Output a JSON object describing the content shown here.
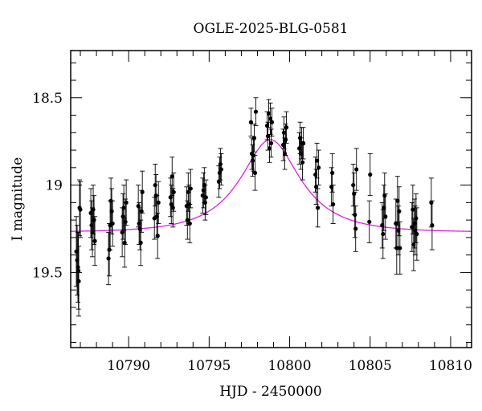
{
  "chart_data": {
    "type": "scatter",
    "title": "OGLE-2025-BLG-0581",
    "xlabel": "HJD - 2450000",
    "ylabel": "I magnitude",
    "xlim": [
      10786.4,
      10811.3
    ],
    "ylim": [
      19.93,
      18.23
    ],
    "y_inverted": true,
    "x_ticks": [
      10790,
      10795,
      10800,
      10805,
      10810
    ],
    "x_tick_labels": [
      "10790",
      "10795",
      "10800",
      "10805",
      "10810"
    ],
    "y_ticks": [
      18.5,
      19,
      19.5
    ],
    "y_tick_labels": [
      "18.5",
      "19",
      "19.5"
    ],
    "grid": false,
    "legend": "none",
    "colors": {
      "points": "#000000",
      "model": "#e020e0",
      "frame": "#000000"
    },
    "series": [
      {
        "kind": "points",
        "points": [
          {
            "x": 10786.75,
            "y": 19.38,
            "err": 0.2
          },
          {
            "x": 10786.8,
            "y": 19.43,
            "err": 0.2
          },
          {
            "x": 10786.85,
            "y": 19.47,
            "err": 0.2
          },
          {
            "x": 10786.88,
            "y": 19.49,
            "err": 0.22
          },
          {
            "x": 10786.9,
            "y": 19.55,
            "err": 0.2
          },
          {
            "x": 10786.95,
            "y": 19.13,
            "err": 0.16
          },
          {
            "x": 10787.0,
            "y": 19.14,
            "err": 0.16
          },
          {
            "x": 10787.65,
            "y": 19.16,
            "err": 0.14
          },
          {
            "x": 10787.7,
            "y": 19.23,
            "err": 0.14
          },
          {
            "x": 10787.75,
            "y": 19.27,
            "err": 0.14
          },
          {
            "x": 10787.8,
            "y": 19.14,
            "err": 0.14
          },
          {
            "x": 10787.85,
            "y": 19.2,
            "err": 0.14
          },
          {
            "x": 10787.9,
            "y": 19.32,
            "err": 0.14
          },
          {
            "x": 10788.75,
            "y": 19.42,
            "err": 0.15
          },
          {
            "x": 10788.8,
            "y": 19.37,
            "err": 0.15
          },
          {
            "x": 10788.85,
            "y": 19.23,
            "err": 0.14
          },
          {
            "x": 10788.9,
            "y": 19.09,
            "err": 0.13
          },
          {
            "x": 10788.95,
            "y": 19.15,
            "err": 0.13
          },
          {
            "x": 10789.0,
            "y": 19.22,
            "err": 0.13
          },
          {
            "x": 10789.6,
            "y": 19.27,
            "err": 0.14
          },
          {
            "x": 10789.65,
            "y": 19.18,
            "err": 0.13
          },
          {
            "x": 10789.7,
            "y": 19.13,
            "err": 0.13
          },
          {
            "x": 10789.75,
            "y": 19.33,
            "err": 0.14
          },
          {
            "x": 10789.8,
            "y": 19.21,
            "err": 0.13
          },
          {
            "x": 10789.85,
            "y": 19.1,
            "err": 0.13
          },
          {
            "x": 10790.6,
            "y": 19.12,
            "err": 0.12
          },
          {
            "x": 10790.65,
            "y": 19.22,
            "err": 0.12
          },
          {
            "x": 10790.7,
            "y": 19.25,
            "err": 0.12
          },
          {
            "x": 10790.75,
            "y": 19.33,
            "err": 0.13
          },
          {
            "x": 10790.8,
            "y": 19.15,
            "err": 0.12
          },
          {
            "x": 10790.85,
            "y": 19.04,
            "err": 0.12
          },
          {
            "x": 10791.6,
            "y": 19.19,
            "err": 0.12
          },
          {
            "x": 10791.65,
            "y": 19.0,
            "err": 0.12
          },
          {
            "x": 10791.7,
            "y": 19.06,
            "err": 0.12
          },
          {
            "x": 10791.75,
            "y": 19.18,
            "err": 0.12
          },
          {
            "x": 10791.8,
            "y": 19.29,
            "err": 0.13
          },
          {
            "x": 10791.85,
            "y": 19.1,
            "err": 0.12
          },
          {
            "x": 10792.6,
            "y": 19.07,
            "err": 0.11
          },
          {
            "x": 10792.65,
            "y": 19.11,
            "err": 0.11
          },
          {
            "x": 10792.7,
            "y": 18.95,
            "err": 0.11
          },
          {
            "x": 10792.75,
            "y": 19.13,
            "err": 0.11
          },
          {
            "x": 10792.8,
            "y": 19.04,
            "err": 0.11
          },
          {
            "x": 10793.6,
            "y": 19.12,
            "err": 0.11
          },
          {
            "x": 10793.65,
            "y": 19.2,
            "err": 0.11
          },
          {
            "x": 10793.7,
            "y": 19.04,
            "err": 0.11
          },
          {
            "x": 10793.75,
            "y": 19.11,
            "err": 0.11
          },
          {
            "x": 10793.8,
            "y": 19.22,
            "err": 0.11
          },
          {
            "x": 10793.85,
            "y": 19.02,
            "err": 0.11
          },
          {
            "x": 10794.6,
            "y": 19.06,
            "err": 0.1
          },
          {
            "x": 10794.65,
            "y": 19.03,
            "err": 0.1
          },
          {
            "x": 10794.7,
            "y": 19.0,
            "err": 0.1
          },
          {
            "x": 10794.75,
            "y": 19.1,
            "err": 0.1
          },
          {
            "x": 10794.8,
            "y": 19.07,
            "err": 0.1
          },
          {
            "x": 10795.6,
            "y": 18.98,
            "err": 0.09
          },
          {
            "x": 10795.65,
            "y": 18.93,
            "err": 0.09
          },
          {
            "x": 10795.7,
            "y": 18.88,
            "err": 0.09
          },
          {
            "x": 10795.75,
            "y": 18.91,
            "err": 0.09
          },
          {
            "x": 10797.6,
            "y": 18.64,
            "err": 0.08
          },
          {
            "x": 10797.65,
            "y": 18.82,
            "err": 0.09
          },
          {
            "x": 10797.7,
            "y": 18.86,
            "err": 0.09
          },
          {
            "x": 10797.75,
            "y": 18.83,
            "err": 0.09
          },
          {
            "x": 10797.8,
            "y": 18.73,
            "err": 0.08
          },
          {
            "x": 10797.85,
            "y": 18.93,
            "err": 0.1
          },
          {
            "x": 10797.9,
            "y": 18.58,
            "err": 0.08
          },
          {
            "x": 10798.6,
            "y": 18.66,
            "err": 0.08
          },
          {
            "x": 10798.65,
            "y": 18.72,
            "err": 0.08
          },
          {
            "x": 10798.7,
            "y": 18.59,
            "err": 0.08
          },
          {
            "x": 10798.75,
            "y": 18.79,
            "err": 0.08
          },
          {
            "x": 10798.8,
            "y": 18.62,
            "err": 0.09
          },
          {
            "x": 10798.85,
            "y": 18.76,
            "err": 0.08
          },
          {
            "x": 10798.9,
            "y": 18.64,
            "err": 0.08
          },
          {
            "x": 10799.6,
            "y": 18.77,
            "err": 0.09
          },
          {
            "x": 10799.65,
            "y": 18.7,
            "err": 0.09
          },
          {
            "x": 10799.7,
            "y": 18.82,
            "err": 0.09
          },
          {
            "x": 10799.75,
            "y": 18.74,
            "err": 0.09
          },
          {
            "x": 10799.8,
            "y": 18.67,
            "err": 0.09
          },
          {
            "x": 10800.6,
            "y": 18.79,
            "err": 0.09
          },
          {
            "x": 10800.65,
            "y": 18.73,
            "err": 0.09
          },
          {
            "x": 10800.7,
            "y": 18.82,
            "err": 0.09
          },
          {
            "x": 10800.75,
            "y": 18.76,
            "err": 0.09
          },
          {
            "x": 10800.8,
            "y": 18.87,
            "err": 0.1
          },
          {
            "x": 10800.85,
            "y": 18.76,
            "err": 0.09
          },
          {
            "x": 10801.6,
            "y": 18.94,
            "err": 0.1
          },
          {
            "x": 10801.65,
            "y": 19.01,
            "err": 0.1
          },
          {
            "x": 10801.7,
            "y": 18.86,
            "err": 0.1
          },
          {
            "x": 10801.75,
            "y": 19.13,
            "err": 0.11
          },
          {
            "x": 10801.8,
            "y": 18.9,
            "err": 0.1
          },
          {
            "x": 10802.6,
            "y": 19.01,
            "err": 0.11
          },
          {
            "x": 10802.65,
            "y": 18.93,
            "err": 0.11
          },
          {
            "x": 10802.7,
            "y": 19.11,
            "err": 0.11
          },
          {
            "x": 10803.95,
            "y": 19.0,
            "err": 0.12
          },
          {
            "x": 10804.0,
            "y": 19.05,
            "err": 0.12
          },
          {
            "x": 10804.05,
            "y": 19.17,
            "err": 0.13
          },
          {
            "x": 10804.1,
            "y": 19.25,
            "err": 0.13
          },
          {
            "x": 10804.15,
            "y": 18.91,
            "err": 0.12
          },
          {
            "x": 10804.95,
            "y": 19.21,
            "err": 0.12
          },
          {
            "x": 10805.0,
            "y": 18.94,
            "err": 0.12
          },
          {
            "x": 10805.75,
            "y": 19.23,
            "err": 0.13
          },
          {
            "x": 10805.8,
            "y": 19.28,
            "err": 0.14
          },
          {
            "x": 10805.85,
            "y": 19.13,
            "err": 0.13
          },
          {
            "x": 10805.9,
            "y": 19.06,
            "err": 0.13
          },
          {
            "x": 10805.95,
            "y": 19.18,
            "err": 0.13
          },
          {
            "x": 10806.6,
            "y": 19.22,
            "err": 0.14
          },
          {
            "x": 10806.65,
            "y": 19.36,
            "err": 0.15
          },
          {
            "x": 10806.7,
            "y": 19.09,
            "err": 0.14
          },
          {
            "x": 10806.75,
            "y": 19.26,
            "err": 0.14
          },
          {
            "x": 10806.8,
            "y": 19.15,
            "err": 0.14
          },
          {
            "x": 10806.85,
            "y": 19.36,
            "err": 0.15
          },
          {
            "x": 10807.6,
            "y": 19.24,
            "err": 0.14
          },
          {
            "x": 10807.65,
            "y": 19.14,
            "err": 0.14
          },
          {
            "x": 10807.7,
            "y": 19.34,
            "err": 0.15
          },
          {
            "x": 10807.75,
            "y": 19.22,
            "err": 0.14
          },
          {
            "x": 10807.8,
            "y": 19.26,
            "err": 0.14
          },
          {
            "x": 10807.85,
            "y": 19.19,
            "err": 0.14
          },
          {
            "x": 10807.9,
            "y": 19.28,
            "err": 0.15
          },
          {
            "x": 10808.8,
            "y": 19.1,
            "err": 0.14
          },
          {
            "x": 10808.85,
            "y": 19.23,
            "err": 0.14
          }
        ]
      },
      {
        "kind": "model",
        "t0": 10798.8,
        "tE": 3.6,
        "u0": 0.55,
        "baseline": 19.27,
        "peak": 18.74
      }
    ]
  }
}
